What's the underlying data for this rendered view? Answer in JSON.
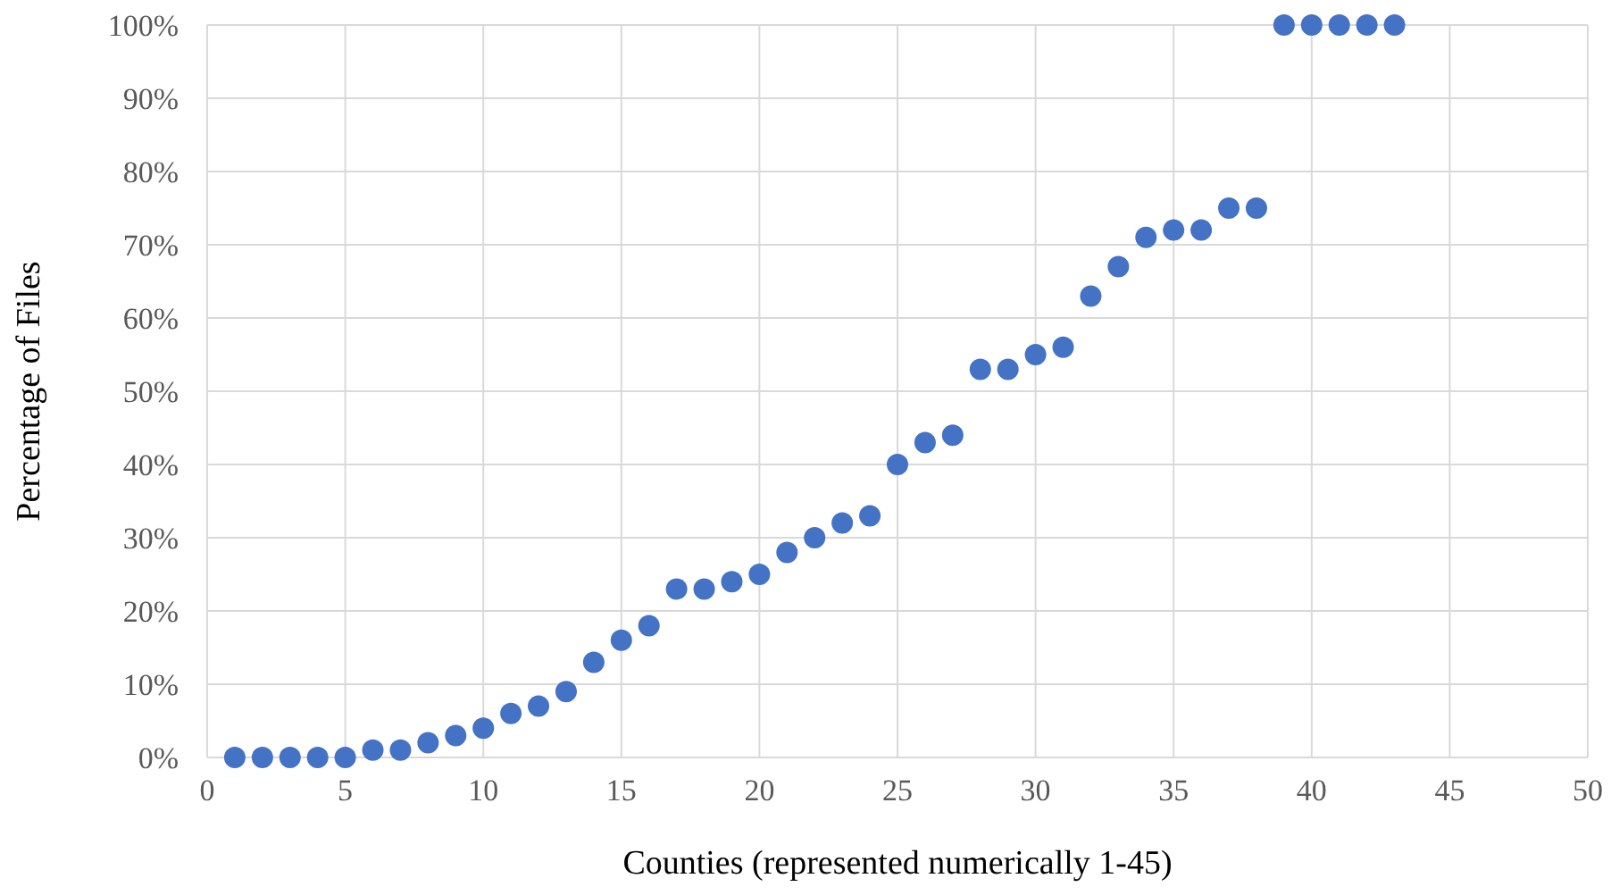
{
  "chart_data": {
    "type": "scatter",
    "xlabel": "Counties (represented numerically 1-45)",
    "ylabel": "Percentage of Files",
    "x": [
      1,
      2,
      3,
      4,
      5,
      6,
      7,
      8,
      9,
      10,
      11,
      12,
      13,
      14,
      15,
      16,
      17,
      18,
      19,
      20,
      21,
      22,
      23,
      24,
      25,
      26,
      27,
      28,
      29,
      30,
      31,
      32,
      33,
      34,
      35,
      36,
      37,
      38,
      39,
      40,
      41,
      42,
      43
    ],
    "series": [
      {
        "color": "#4472c4",
        "values": [
          0,
          0,
          0,
          0,
          0,
          1,
          1,
          2,
          3,
          4,
          6,
          7,
          9,
          13,
          16,
          18,
          23,
          23,
          24,
          25,
          28,
          30,
          32,
          33,
          40,
          43,
          44,
          53,
          53,
          55,
          56,
          63,
          67,
          71,
          72,
          72,
          75,
          75,
          100,
          100,
          100,
          100,
          100
        ]
      }
    ],
    "xlim": [
      0,
      50
    ],
    "xticks": [
      0,
      5,
      10,
      15,
      20,
      25,
      30,
      35,
      40,
      45,
      50
    ],
    "ylim": [
      0,
      100
    ],
    "yticks": [
      {
        "value": 0,
        "label": "0%"
      },
      {
        "value": 10,
        "label": "10%"
      },
      {
        "value": 20,
        "label": "20%"
      },
      {
        "value": 30,
        "label": "30%"
      },
      {
        "value": 40,
        "label": "40%"
      },
      {
        "value": 50,
        "label": "50%"
      },
      {
        "value": 60,
        "label": "60%"
      },
      {
        "value": 70,
        "label": "70%"
      },
      {
        "value": 80,
        "label": "80%"
      },
      {
        "value": 90,
        "label": "90%"
      },
      {
        "value": 100,
        "label": "100%"
      }
    ],
    "grid": true,
    "marker": "circle"
  }
}
